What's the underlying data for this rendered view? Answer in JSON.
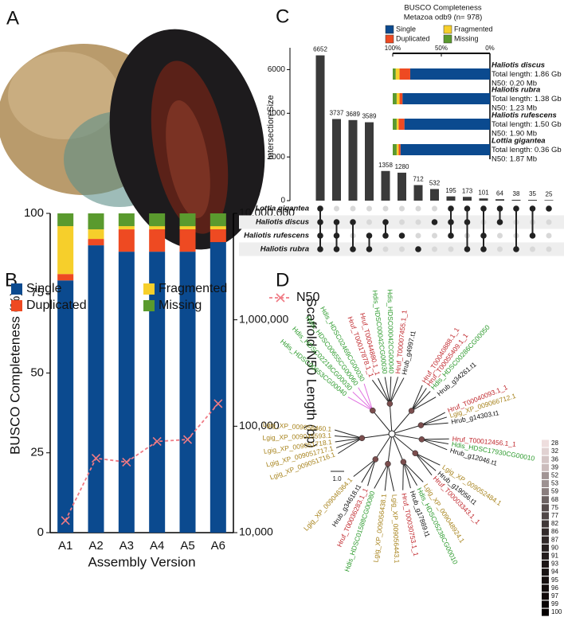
{
  "panel_labels": [
    "A",
    "B",
    "C",
    "D"
  ],
  "chart_data": [
    {
      "type": "stacked_bar",
      "categories": [
        "A1",
        "A2",
        "A3",
        "A4",
        "A5",
        "A6"
      ],
      "series": [
        {
          "name": "Single",
          "color": "#0b4a8f",
          "values": [
            79,
            90,
            88,
            88,
            88,
            91
          ]
        },
        {
          "name": "Duplicated",
          "color": "#ee4a22",
          "values": [
            2,
            2,
            7,
            7,
            7,
            4
          ]
        },
        {
          "name": "Fragmented",
          "color": "#f6cf2b",
          "values": [
            15,
            3,
            1,
            1,
            1,
            1
          ]
        },
        {
          "name": "Missing",
          "color": "#5a9a2e",
          "values": [
            4,
            5,
            4,
            4,
            4,
            4
          ]
        },
        {
          "name": "N50",
          "color": "#f07a84",
          "axis": "y2",
          "values": [
            13000,
            50000,
            46000,
            72000,
            75000,
            163000
          ]
        }
      ],
      "ylabel": "BUSCO Completeness (%)",
      "y2label": "Scaffold N50 Length (bp)",
      "xlabel": "Assembly Version",
      "ylim": [
        0,
        100
      ],
      "yticks": [
        0,
        25,
        50,
        75,
        100
      ],
      "y2lim": [
        10000,
        10000000
      ],
      "y2log": true,
      "y2ticks": [
        {
          "value": 10000,
          "label": "10,000"
        },
        {
          "value": 100000,
          "label": "100,000"
        },
        {
          "value": 1000000,
          "label": "1,000,000"
        },
        {
          "value": 10000000,
          "label": "10,000,000"
        }
      ]
    },
    {
      "type": "upset",
      "values": [
        6652,
        3737,
        3689,
        3589,
        1358,
        1280,
        712,
        532,
        195,
        173,
        101,
        64,
        38,
        35,
        25
      ],
      "sets": [
        "Lottia gigantea",
        "Haliotis discus",
        "Haliotis rufescens",
        "Haliotis rubra"
      ],
      "members": [
        [
          0,
          1,
          2,
          3
        ],
        [
          1,
          2,
          3
        ],
        [
          1,
          3
        ],
        [
          2,
          3
        ],
        [
          1,
          2
        ],
        [
          2
        ],
        [
          3
        ],
        [
          1
        ],
        [
          0,
          1,
          2
        ],
        [
          0,
          1,
          3
        ],
        [
          0,
          2,
          3
        ],
        [
          0,
          1
        ],
        [
          0,
          3
        ],
        [
          0,
          2
        ],
        [
          0
        ]
      ],
      "ylabel": "Intersection Size",
      "ylim": [
        0,
        7000
      ],
      "yticks": [
        0,
        2000,
        4000,
        6000
      ],
      "color": "#3a3a3a"
    },
    {
      "type": "stacked_barh",
      "title": "BUSCO Completeness",
      "subtitle": "Metazoa odb9 (n= 978)",
      "categories": [
        "Haliotis discus",
        "Haliotis rubra",
        "Haliotis rufescens",
        "Lottia gigantea"
      ],
      "details": [
        [
          "Total length: 1.86 Gb",
          "N50: 0.20 Mb"
        ],
        [
          "Total length: 1.38 Gb",
          "N50: 1.23 Mb"
        ],
        [
          "Total length: 1.50 Gb",
          "N50: 1.90 Mb"
        ],
        [
          "Total length: 0.36 Gb",
          "N50: 1.87 Mb"
        ]
      ],
      "series": [
        {
          "name": "Single",
          "color": "#0b4a8f",
          "values": [
            82,
            90,
            88,
            92
          ]
        },
        {
          "name": "Duplicated",
          "color": "#ee4a22",
          "values": [
            11,
            3,
            6,
            2
          ]
        },
        {
          "name": "Fragmented",
          "color": "#f6cf2b",
          "values": [
            4,
            3,
            2,
            2
          ]
        },
        {
          "name": "Missing",
          "color": "#5a9a2e",
          "values": [
            3,
            4,
            4,
            4
          ]
        }
      ],
      "xlim": [
        100,
        0
      ],
      "xticks": [
        {
          "value": 100,
          "label": "100%"
        },
        {
          "value": 50,
          "label": "50%"
        },
        {
          "value": 0,
          "label": "0%"
        }
      ]
    }
  ],
  "tree": {
    "scale": "1.0",
    "labels": [
      {
        "text": "Hdis_HDSC00653CG00040",
        "color": "#2e9b2e"
      },
      {
        "text": "Hdis_HDSC02218CG00030",
        "color": "#2e9b2e"
      },
      {
        "text": "Hdis_HDSC00655CG00060",
        "color": "#2e9b2e"
      },
      {
        "text": "Hdis_HDSC02469CG00030",
        "color": "#2e9b2e"
      },
      {
        "text": "Hruf_T00017878.1_1",
        "color": "#c0282d"
      },
      {
        "text": "Hruf_T00044880.1_1",
        "color": "#c0282d"
      },
      {
        "text": "Hdis_HDSC00042CG00030",
        "color": "#2e9b2e"
      },
      {
        "text": "Hdis_HDSC00042CG00040",
        "color": "#2e9b2e"
      },
      {
        "text": "Hruf_T00007455.1_1",
        "color": "#c0282d"
      },
      {
        "text": "Hrub_g4997.t1",
        "color": "#111111"
      },
      {
        "text": "Hruf_T00040888.1_1",
        "color": "#c0282d"
      },
      {
        "text": "Hruf_T00055409.1_1",
        "color": "#c0282d"
      },
      {
        "text": "Hdis_HDSC00286CG00050",
        "color": "#2e9b2e"
      },
      {
        "text": "Hrub_g34261.t1",
        "color": "#111111"
      },
      {
        "text": "Hruf_T00040093.1_1",
        "color": "#c0282d"
      },
      {
        "text": "Lgig_XP_009066712.1",
        "color": "#a8841e"
      },
      {
        "text": "Hrub_g14303.t1",
        "color": "#111111"
      },
      {
        "text": "Hruf_T00012456.1_1",
        "color": "#c0282d"
      },
      {
        "text": "Hdis_HDSC17930CG00010",
        "color": "#2e9b2e"
      },
      {
        "text": "Hrub_g12046.t1",
        "color": "#111111"
      },
      {
        "text": "Lgig_XP_009052484.1",
        "color": "#a8841e"
      },
      {
        "text": "Hrub_g19056.t1",
        "color": "#111111"
      },
      {
        "text": "Hruf_T00003343.1_1",
        "color": "#c0282d"
      },
      {
        "text": "Lgig_XP_009048924.1",
        "color": "#a8841e"
      },
      {
        "text": "Hdis_HDSC05238CG00010",
        "color": "#2e9b2e"
      },
      {
        "text": "Hrub_g17889.t1",
        "color": "#111111"
      },
      {
        "text": "Hruf_T00030753.1_1",
        "color": "#c0282d"
      },
      {
        "text": "Lgig_XP_009056443.1",
        "color": "#a8841e"
      },
      {
        "text": "Lgig_XP_009056438.1",
        "color": "#a8841e"
      },
      {
        "text": "Hdis_HDSC01588CG00080",
        "color": "#2e9b2e"
      },
      {
        "text": "Hruf_T00036283.1_1",
        "color": "#c0282d"
      },
      {
        "text": "Hrub_g34618.t1",
        "color": "#111111"
      },
      {
        "text": "Lgig_XP_009046364.1",
        "color": "#a8841e"
      },
      {
        "text": "Lgig_XP_009051716.1",
        "color": "#a8841e"
      },
      {
        "text": "Lgig_XP_009051717.1",
        "color": "#a8841e"
      },
      {
        "text": "Lgig_XP_009051718.1",
        "color": "#a8841e"
      },
      {
        "text": "Lgig_XP_009045593.1",
        "color": "#a8841e"
      },
      {
        "text": "Lgig_XP_009056460.1",
        "color": "#a8841e"
      }
    ],
    "legend": [
      28,
      32,
      36,
      39,
      52,
      53,
      59,
      68,
      75,
      77,
      82,
      86,
      87,
      90,
      91,
      93,
      94,
      95,
      96,
      97,
      99,
      100
    ]
  }
}
